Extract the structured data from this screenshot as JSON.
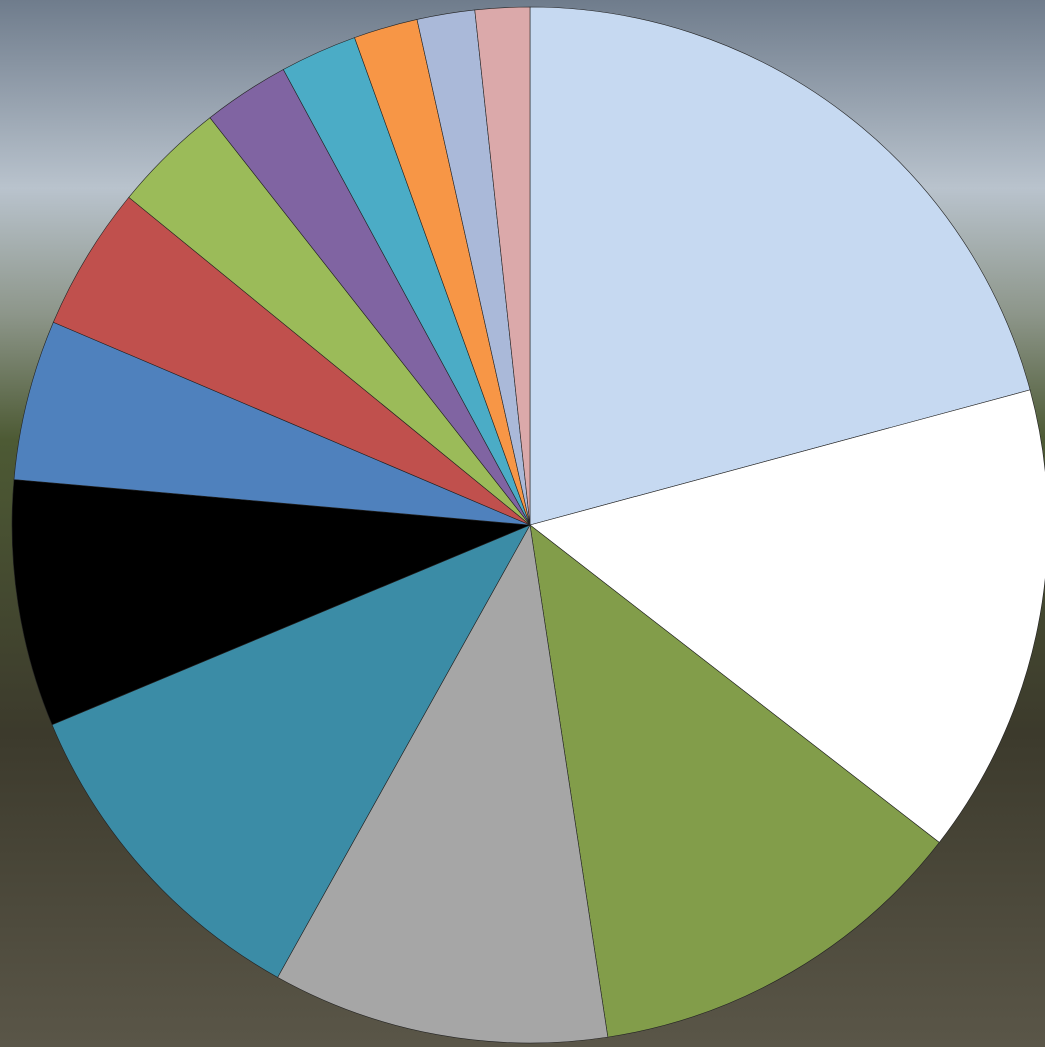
{
  "chart_data": {
    "type": "pie",
    "values": [
      20.8,
      14.7,
      12.1,
      10.5,
      10.6,
      7.7,
      5.0,
      4.5,
      3.5,
      2.7,
      2.4,
      2.0,
      1.8,
      1.7
    ],
    "colors": [
      "#c6d9f1",
      "#ffffff",
      "#829d4a",
      "#a6a6a6",
      "#3b8ca6",
      "#000000",
      "#4f81bd",
      "#c0504d",
      "#9bbb59",
      "#8064a2",
      "#4bacc6",
      "#f79646",
      "#aab9d9",
      "#dba9aa"
    ]
  }
}
